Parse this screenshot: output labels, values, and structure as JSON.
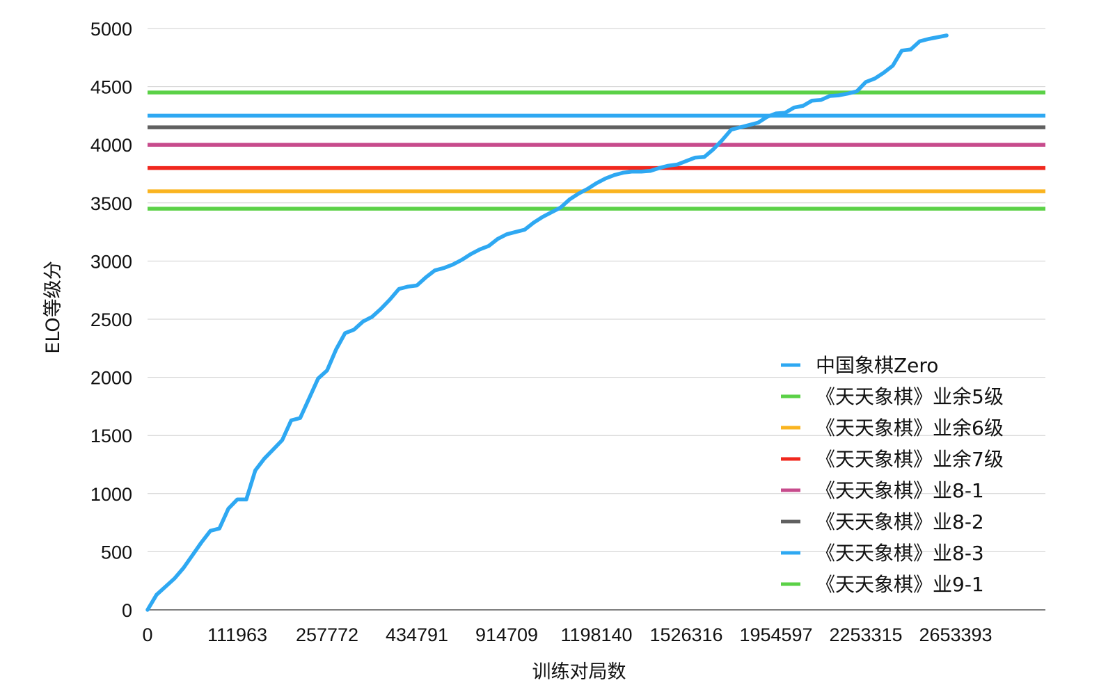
{
  "chart_data": {
    "type": "line",
    "xlabel": "训练对局数",
    "ylabel": "ELO等级分",
    "ylim": [
      0,
      5000
    ],
    "y_ticks": [
      0,
      500,
      1000,
      1500,
      2000,
      2500,
      3000,
      3500,
      4000,
      4500,
      5000
    ],
    "x_ticks": [
      {
        "label": "0",
        "index": 0
      },
      {
        "label": "111963",
        "index": 10
      },
      {
        "label": "257772",
        "index": 20
      },
      {
        "label": "434791",
        "index": 30
      },
      {
        "label": "914709",
        "index": 40
      },
      {
        "label": "1198140",
        "index": 50
      },
      {
        "label": "1526316",
        "index": 60
      },
      {
        "label": "1954597",
        "index": 70
      },
      {
        "label": "2253315",
        "index": 80
      },
      {
        "label": "2653393",
        "index": 90
      }
    ],
    "grid": true,
    "legend_position": "bottom-right",
    "series": [
      {
        "name": "中国象棋Zero",
        "color": "#2ea8f2",
        "values": [
          0,
          130,
          200,
          270,
          360,
          470,
          580,
          680,
          700,
          870,
          950,
          950,
          1200,
          1300,
          1380,
          1460,
          1630,
          1650,
          1820,
          1990,
          2060,
          2240,
          2380,
          2410,
          2480,
          2520,
          2590,
          2670,
          2760,
          2780,
          2790,
          2860,
          2920,
          2940,
          2970,
          3010,
          3060,
          3100,
          3130,
          3190,
          3230,
          3250,
          3270,
          3330,
          3380,
          3420,
          3460,
          3530,
          3580,
          3620,
          3670,
          3710,
          3740,
          3760,
          3770,
          3770,
          3775,
          3800,
          3820,
          3830,
          3860,
          3890,
          3895,
          3960,
          4040,
          4130,
          4150,
          4170,
          4190,
          4240,
          4270,
          4275,
          4320,
          4335,
          4380,
          4385,
          4420,
          4425,
          4440,
          4460,
          4540,
          4570,
          4620,
          4680,
          4810,
          4820,
          4890,
          4910,
          4925,
          4940
        ]
      },
      {
        "name": "《天天象棋》业余5级",
        "color": "#5bd147",
        "constant": 3450
      },
      {
        "name": "《天天象棋》业余6级",
        "color": "#fab420",
        "constant": 3600
      },
      {
        "name": "《天天象棋》业余7级",
        "color": "#f0281e",
        "constant": 3800
      },
      {
        "name": "《天天象棋》业8-1",
        "color": "#c74b8c",
        "constant": 4000
      },
      {
        "name": "《天天象棋》业8-2",
        "color": "#606060",
        "constant": 4150
      },
      {
        "name": "《天天象棋》业8-3",
        "color": "#2ea8f2",
        "constant": 4250
      },
      {
        "name": "《天天象棋》业9-1",
        "color": "#5bd147",
        "constant": 4450
      }
    ]
  }
}
